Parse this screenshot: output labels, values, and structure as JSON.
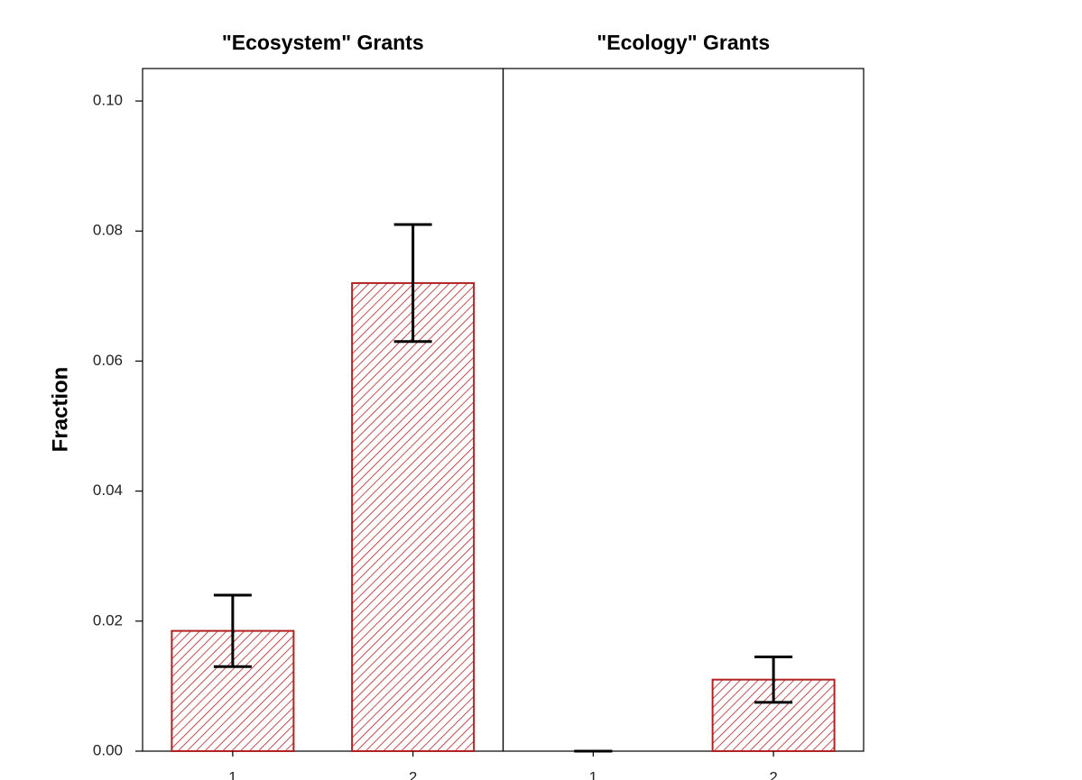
{
  "chart_data": {
    "type": "bar",
    "ylabel": "Fraction",
    "ylim": [
      0,
      0.105
    ],
    "yticks": [
      {
        "value": 0,
        "label": "0.00"
      },
      0.02,
      0.04,
      0.06,
      0.08,
      {
        "value": 0.1,
        "label": "0.10"
      }
    ],
    "color": "#b22222",
    "panels": [
      {
        "title": "\"Ecosystem\" Grants",
        "categories": [
          "1",
          "2"
        ],
        "values": [
          0.0185,
          0.072
        ],
        "errors": [
          0.0055,
          0.009
        ]
      },
      {
        "title": "\"Ecology\" Grants",
        "categories": [
          "1",
          "2"
        ],
        "values": [
          0,
          0.011
        ],
        "errors": [
          0,
          0.0035
        ]
      }
    ]
  }
}
